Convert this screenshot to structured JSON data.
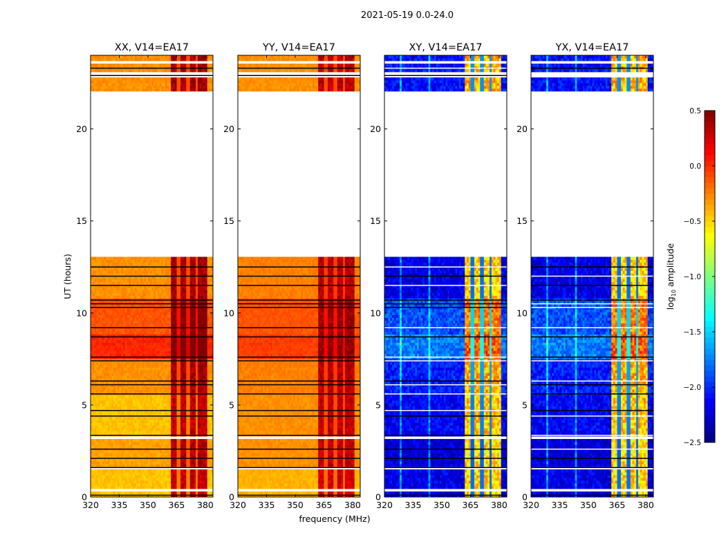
{
  "chart_data": {
    "type": "heatmap",
    "suptitle": "2021-05-19 0.0-24.0",
    "xlabel": "frequency (MHz)",
    "ylabel": "UT (hours)",
    "xlim": [
      320,
      384
    ],
    "ylim": [
      0,
      24
    ],
    "xticks": [
      "320",
      "335",
      "350",
      "365",
      "380"
    ],
    "xtick_values": [
      320,
      335,
      350,
      365,
      380
    ],
    "yticks": [
      "0",
      "5",
      "10",
      "15",
      "20"
    ],
    "ytick_values": [
      0,
      5,
      10,
      15,
      20
    ],
    "colorbar": {
      "label_prefix": "log",
      "label_sub": "10",
      "label_suffix": " amplitude",
      "colormap": "jet",
      "range": [
        -2.5,
        0.5
      ],
      "ticks": [
        "0.5",
        "0.0",
        "−0.5",
        "−1.0",
        "−1.5",
        "−2.0",
        "−2.5"
      ],
      "tick_values": [
        0.5,
        0.0,
        -0.5,
        -1.0,
        -1.5,
        -2.0,
        -2.5
      ]
    },
    "data_time_ranges": [
      [
        0,
        13
      ],
      [
        21.8,
        24
      ]
    ],
    "white_gaps_hours": [
      [
        0.3,
        0.5
      ],
      [
        1.45,
        1.6
      ],
      [
        3.2,
        3.35
      ],
      [
        10.9,
        11.0
      ],
      [
        21.8,
        22.0
      ],
      [
        22.85,
        23.05
      ],
      [
        23.5,
        23.65
      ]
    ],
    "flag_lines_hours": [
      0.1,
      1.6,
      2.1,
      2.6,
      3.35,
      4.4,
      4.7,
      5.6,
      6.1,
      6.3,
      7.4,
      7.6,
      8.7,
      9.2,
      10.3,
      10.5,
      10.7,
      11.5,
      12.0,
      12.5,
      22.9,
      23.3
    ],
    "rfi_band_mhz": [
      362,
      381
    ],
    "rfi_gap_columns_mhz": [
      366,
      371,
      375.5
    ],
    "panels": [
      {
        "title": "XX, V14=EA17",
        "rfi_level": 0.3,
        "noise": 0.06,
        "time_bands": [
          [
            0,
            1.6,
            -0.45
          ],
          [
            1.6,
            3.3,
            -0.35
          ],
          [
            3.3,
            5.6,
            -0.45
          ],
          [
            5.6,
            7.5,
            -0.3
          ],
          [
            7.5,
            8.8,
            0.02
          ],
          [
            8.8,
            10.8,
            -0.12
          ],
          [
            10.8,
            13,
            -0.3
          ],
          [
            21.8,
            24,
            -0.3
          ]
        ]
      },
      {
        "title": "YY, V14=EA17",
        "rfi_level": 0.25,
        "noise": 0.05,
        "time_bands": [
          [
            0,
            1.6,
            -0.4
          ],
          [
            1.6,
            3.3,
            -0.3
          ],
          [
            3.3,
            5.6,
            -0.3
          ],
          [
            5.6,
            7.5,
            -0.25
          ],
          [
            7.5,
            8.8,
            -0.05
          ],
          [
            8.8,
            10.8,
            -0.12
          ],
          [
            10.8,
            13,
            -0.25
          ],
          [
            21.8,
            24,
            -0.3
          ]
        ]
      },
      {
        "title": "XY, V14=EA17",
        "rfi_level": -0.5,
        "noise": 0.18,
        "time_bands": [
          [
            0,
            1.6,
            -2.2
          ],
          [
            1.6,
            3.3,
            -2.25
          ],
          [
            3.3,
            5.6,
            -2.15
          ],
          [
            5.6,
            7.5,
            -2.05
          ],
          [
            7.5,
            8.8,
            -1.75
          ],
          [
            8.8,
            10.8,
            -1.9
          ],
          [
            10.8,
            13,
            -2.2
          ],
          [
            21.8,
            24,
            -2.1
          ]
        ]
      },
      {
        "title": "YX, V14=EA17",
        "rfi_level": -0.5,
        "noise": 0.18,
        "time_bands": [
          [
            0,
            1.6,
            -2.2
          ],
          [
            1.6,
            3.3,
            -2.25
          ],
          [
            3.3,
            5.6,
            -2.15
          ],
          [
            5.6,
            7.5,
            -2.05
          ],
          [
            7.5,
            8.8,
            -1.75
          ],
          [
            8.8,
            10.8,
            -1.9
          ],
          [
            10.8,
            13,
            -2.2
          ],
          [
            21.8,
            24,
            -2.1
          ]
        ]
      }
    ]
  }
}
